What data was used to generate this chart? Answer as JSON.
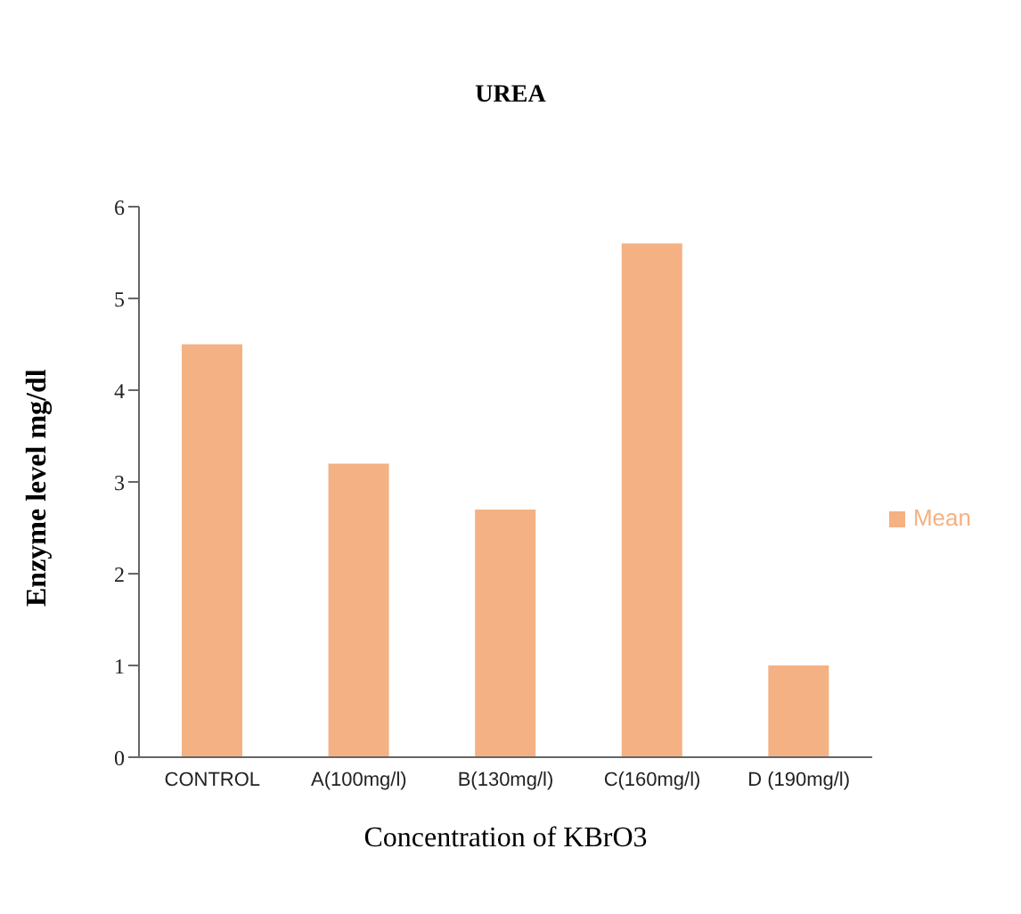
{
  "chart_data": {
    "type": "bar",
    "title": "UREA",
    "xlabel": "Concentration of KBrO3",
    "ylabel": "Enzyme level mg/dl",
    "categories": [
      "CONTROL",
      "A(100mg/l)",
      "B(130mg/l)",
      "C(160mg/l)",
      "D (190mg/l)"
    ],
    "series": [
      {
        "name": "Mean",
        "color": "#f4b183",
        "values": [
          4.5,
          3.2,
          2.7,
          5.6,
          1.0
        ]
      }
    ],
    "ylim": [
      0,
      6
    ],
    "yticks": [
      0,
      1,
      2,
      3,
      4,
      5,
      6
    ],
    "grid": false,
    "legend": "right"
  }
}
